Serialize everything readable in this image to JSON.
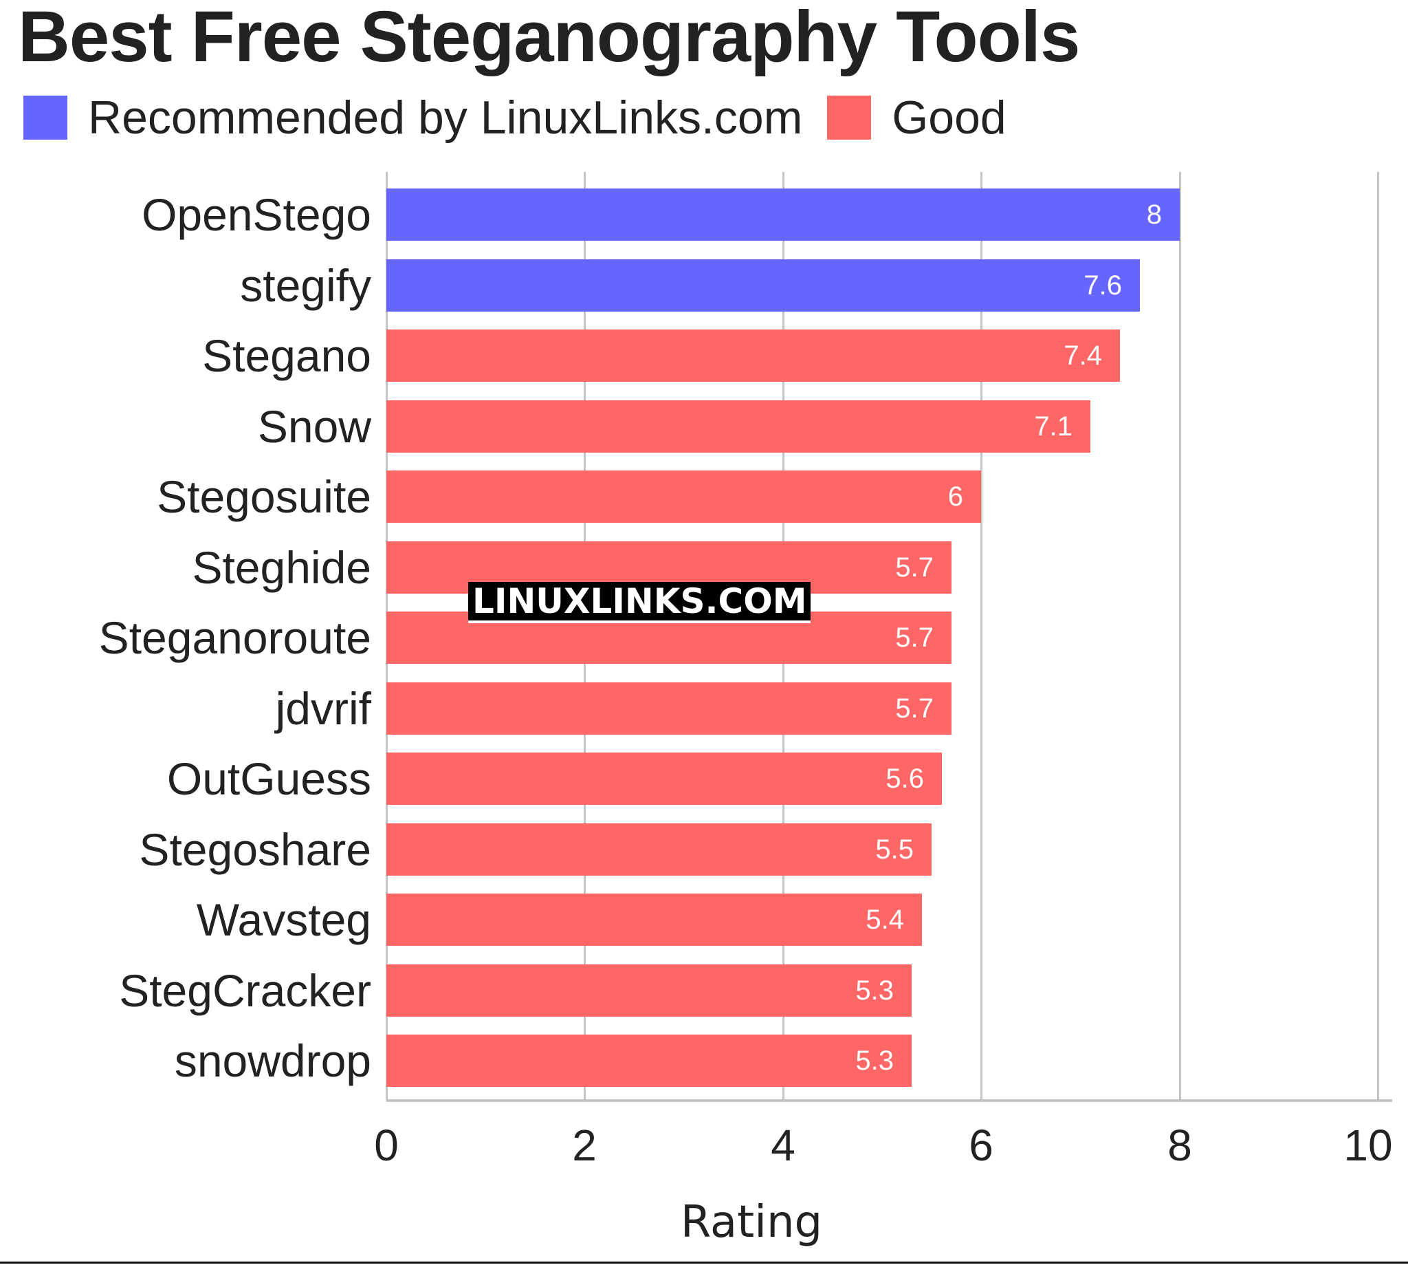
{
  "chart_data": {
    "type": "bar",
    "orientation": "horizontal",
    "title": "Best Free Steganography Tools",
    "xlabel": "Rating",
    "ylabel": "",
    "xlim": [
      0,
      10
    ],
    "xticks": [
      "0",
      "2",
      "4",
      "6",
      "8",
      "10"
    ],
    "grid": true,
    "legend_position": "top-left",
    "legend": [
      {
        "name": "Recommended by LinuxLinks.com",
        "color": "#6666ff"
      },
      {
        "name": "Good",
        "color": "#ff6666"
      }
    ],
    "categories": [
      "OpenStego",
      "stegify",
      "Stegano",
      "Snow",
      "Stegosuite",
      "Steghide",
      "Steganoroute",
      "jdvrif",
      "OutGuess",
      "Stegoshare",
      "Wavsteg",
      "StegCracker",
      "snowdrop"
    ],
    "values": [
      8,
      7.6,
      7.4,
      7.1,
      6,
      5.7,
      5.7,
      5.7,
      5.6,
      5.5,
      5.4,
      5.3,
      5.3
    ],
    "series": [
      {
        "name": "Recommended by LinuxLinks.com",
        "values": [
          8,
          7.6,
          null,
          null,
          null,
          null,
          null,
          null,
          null,
          null,
          null,
          null,
          null
        ]
      },
      {
        "name": "Good",
        "values": [
          null,
          null,
          7.4,
          7.1,
          6,
          5.7,
          5.7,
          5.7,
          5.6,
          5.5,
          5.4,
          5.3,
          5.3
        ]
      }
    ],
    "annotations": [
      "LINUXLINKS.COM"
    ]
  },
  "header": {
    "title": "Best Free Steganography Tools"
  },
  "legend": {
    "items": [
      {
        "label": "Recommended by LinuxLinks.com",
        "color": "#6666ff"
      },
      {
        "label": "Good",
        "color": "#ff6666"
      }
    ]
  },
  "bars": [
    {
      "label": "OpenStego",
      "value": "8",
      "v": 8,
      "color": "#6666ff"
    },
    {
      "label": "stegify",
      "value": "7.6",
      "v": 7.6,
      "color": "#6666ff"
    },
    {
      "label": "Stegano",
      "value": "7.4",
      "v": 7.4,
      "color": "#ff6666"
    },
    {
      "label": "Snow",
      "value": "7.1",
      "v": 7.1,
      "color": "#ff6666"
    },
    {
      "label": "Stegosuite",
      "value": "6",
      "v": 6,
      "color": "#ff6666"
    },
    {
      "label": "Steghide",
      "value": "5.7",
      "v": 5.7,
      "color": "#ff6666"
    },
    {
      "label": "Steganoroute",
      "value": "5.7",
      "v": 5.7,
      "color": "#ff6666"
    },
    {
      "label": "jdvrif",
      "value": "5.7",
      "v": 5.7,
      "color": "#ff6666"
    },
    {
      "label": "OutGuess",
      "value": "5.6",
      "v": 5.6,
      "color": "#ff6666"
    },
    {
      "label": "Stegoshare",
      "value": "5.5",
      "v": 5.5,
      "color": "#ff6666"
    },
    {
      "label": "Wavsteg",
      "value": "5.4",
      "v": 5.4,
      "color": "#ff6666"
    },
    {
      "label": "StegCracker",
      "value": "5.3",
      "v": 5.3,
      "color": "#ff6666"
    },
    {
      "label": "snowdrop",
      "value": "5.3",
      "v": 5.3,
      "color": "#ff6666"
    }
  ],
  "axis": {
    "ticks": [
      "0",
      "2",
      "4",
      "6",
      "8",
      "10"
    ],
    "xlabel": "Rating"
  },
  "watermark": "LINUXLINKS.COM"
}
